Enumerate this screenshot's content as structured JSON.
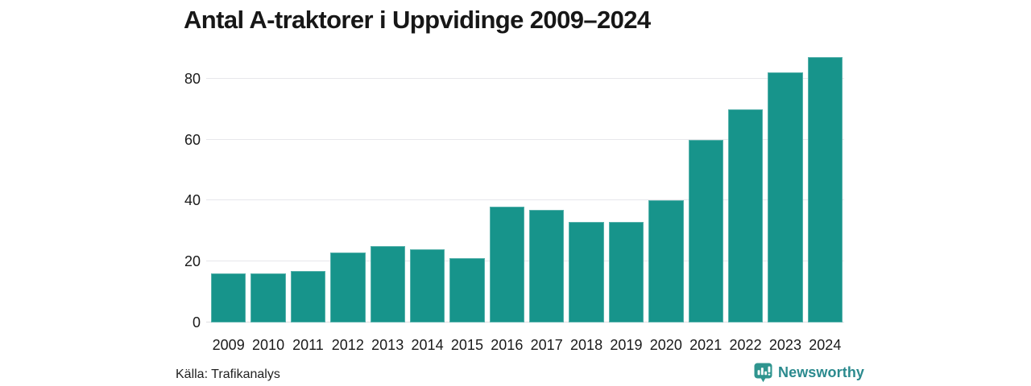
{
  "title": "Antal A-traktorer i Uppvidinge 2009–2024",
  "source": "Källa: Trafikanalys",
  "branding": {
    "name": "Newsworthy",
    "logo_icon": "bar-chart-speech-bubble-icon"
  },
  "colors": {
    "bar": "#17948b",
    "gridline": "#e7e7eb",
    "text": "#1a1a1a",
    "brand_teal": "#2b8a8e",
    "logo_bubble": "#2f958f"
  },
  "chart_data": {
    "type": "bar",
    "title": "Antal A-traktorer i Uppvidinge 2009–2024",
    "categories": [
      "2009",
      "2010",
      "2011",
      "2012",
      "2013",
      "2014",
      "2015",
      "2016",
      "2017",
      "2018",
      "2019",
      "2020",
      "2021",
      "2022",
      "2023",
      "2024"
    ],
    "values": [
      16,
      16,
      17,
      23,
      25,
      24,
      21,
      38,
      37,
      33,
      33,
      40,
      60,
      70,
      82,
      87
    ],
    "xlabel": "",
    "ylabel": "",
    "ylim": [
      0,
      90
    ],
    "yticks": [
      0,
      20,
      40,
      60,
      80
    ],
    "grid": true,
    "legend": false,
    "bar_color": "#17948b"
  }
}
